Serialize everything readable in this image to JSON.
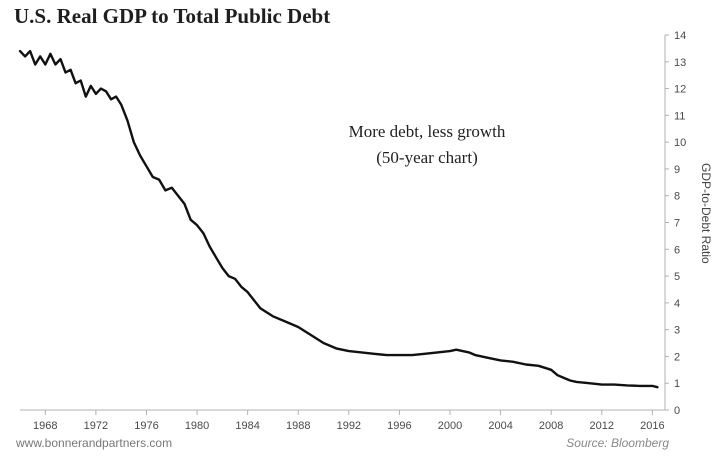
{
  "chart_data": {
    "type": "line",
    "title": "U.S. Real GDP to Total Public Debt",
    "ylabel": "GDP-to-Debt Ratio",
    "xlabel": "",
    "xlim": [
      1966,
      2017
    ],
    "ylim": [
      0,
      14
    ],
    "xticks": [
      "1968",
      "1972",
      "1976",
      "1980",
      "1984",
      "1988",
      "1992",
      "1996",
      "2000",
      "2004",
      "2008",
      "2012",
      "2016"
    ],
    "yticks": [
      "0",
      "1",
      "2",
      "3",
      "4",
      "5",
      "6",
      "7",
      "8",
      "9",
      "10",
      "11",
      "12",
      "13",
      "14"
    ],
    "annotations": [
      "More debt, less growth",
      "(50-year chart)"
    ],
    "series": [
      {
        "name": "GDP-to-Debt Ratio",
        "x": [
          1966.0,
          1966.4,
          1966.8,
          1967.2,
          1967.6,
          1968.0,
          1968.4,
          1968.8,
          1969.2,
          1969.6,
          1970.0,
          1970.4,
          1970.8,
          1971.2,
          1971.6,
          1972.0,
          1972.4,
          1972.8,
          1973.2,
          1973.6,
          1974.0,
          1974.5,
          1975.0,
          1975.5,
          1976.0,
          1976.5,
          1977.0,
          1977.5,
          1978.0,
          1978.5,
          1979.0,
          1979.5,
          1980.0,
          1980.5,
          1981.0,
          1981.5,
          1982.0,
          1982.5,
          1983.0,
          1983.5,
          1984.0,
          1984.5,
          1985.0,
          1986.0,
          1987.0,
          1988.0,
          1989.0,
          1990.0,
          1991.0,
          1992.0,
          1993.0,
          1994.0,
          1995.0,
          1996.0,
          1997.0,
          1998.0,
          1999.0,
          2000.0,
          2000.5,
          2001.0,
          2001.5,
          2002.0,
          2003.0,
          2004.0,
          2005.0,
          2006.0,
          2007.0,
          2008.0,
          2008.5,
          2009.0,
          2009.5,
          2010.0,
          2011.0,
          2012.0,
          2013.0,
          2014.0,
          2015.0,
          2016.0,
          2016.4
        ],
        "values": [
          13.4,
          13.2,
          13.4,
          12.9,
          13.2,
          12.9,
          13.3,
          12.9,
          13.1,
          12.6,
          12.7,
          12.2,
          12.3,
          11.7,
          12.1,
          11.8,
          12.0,
          11.9,
          11.6,
          11.7,
          11.4,
          10.8,
          10.0,
          9.5,
          9.1,
          8.7,
          8.6,
          8.2,
          8.3,
          8.0,
          7.7,
          7.1,
          6.9,
          6.6,
          6.1,
          5.7,
          5.3,
          5.0,
          4.9,
          4.6,
          4.4,
          4.1,
          3.8,
          3.5,
          3.3,
          3.1,
          2.8,
          2.5,
          2.3,
          2.2,
          2.15,
          2.1,
          2.05,
          2.05,
          2.05,
          2.1,
          2.15,
          2.2,
          2.25,
          2.2,
          2.15,
          2.05,
          1.95,
          1.85,
          1.8,
          1.7,
          1.65,
          1.5,
          1.3,
          1.2,
          1.1,
          1.05,
          1.0,
          0.95,
          0.95,
          0.92,
          0.9,
          0.9,
          0.85
        ]
      }
    ],
    "footer_left": "www.bonnerandpartners.com",
    "footer_right": "Source: Bloomberg"
  }
}
